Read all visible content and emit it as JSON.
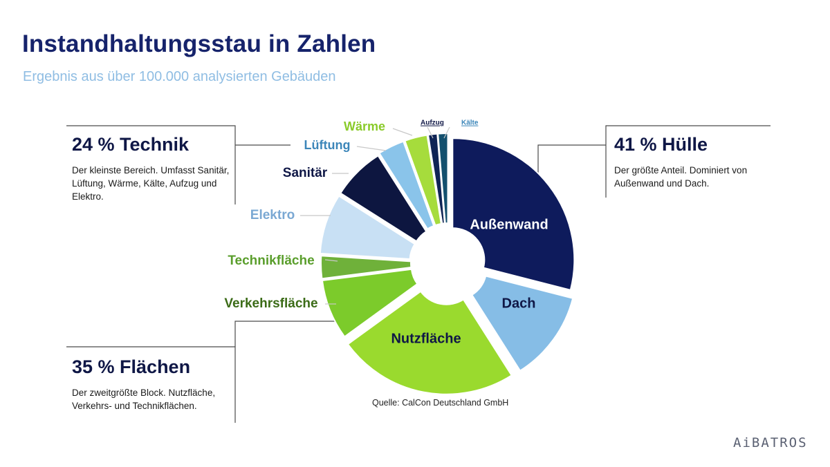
{
  "title": "Instandhaltungsstau in Zahlen",
  "subtitle": "Ergebnis aus über 100.000 analysierten Gebäuden",
  "source": "Quelle: CalCon Deutschland GmbH",
  "brand": "AiBATROS",
  "groups": {
    "technik": {
      "heading": "24 % Technik",
      "text": "Der kleinste Bereich. Umfasst Sanitär, Lüftung, Wärme, Kälte, Aufzug und Elektro."
    },
    "huelle": {
      "heading": "41 % Hülle",
      "text": "Der größte Anteil. Dominiert von Außenwand und Dach."
    },
    "flaechen": {
      "heading": "35 % Flächen",
      "text": "Der zweitgrößte Block. Nutzfläche, Verkehrs- und Technikflächen."
    }
  },
  "chart_data": {
    "type": "pie",
    "style": "donut",
    "slices": [
      {
        "label": "Außenwand",
        "value": 29,
        "color": "#0e1b5c",
        "text_color": "#ffffff",
        "group": "Hülle"
      },
      {
        "label": "Dach",
        "value": 12,
        "color": "#86bde6",
        "text_color": "#0f1746",
        "group": "Hülle"
      },
      {
        "label": "Nutzfläche",
        "value": 24,
        "color": "#9ada2e",
        "text_color": "#0f1746",
        "group": "Flächen"
      },
      {
        "label": "Verkehrsfläche",
        "value": 8,
        "color": "#7ccb2b",
        "text_color": "#3b6b17",
        "group": "Flächen"
      },
      {
        "label": "Technikfläche",
        "value": 3,
        "color": "#6fb13a",
        "text_color": "#5a9e2c",
        "group": "Flächen"
      },
      {
        "label": "Elektro",
        "value": 8,
        "color": "#c8e0f4",
        "text_color": "#7aa8d3",
        "group": "Technik"
      },
      {
        "label": "Sanitär",
        "value": 7,
        "color": "#0d1640",
        "text_color": "#0f1746",
        "group": "Technik"
      },
      {
        "label": "Lüftung",
        "value": 3.5,
        "color": "#8ac4ea",
        "text_color": "#3c86b9",
        "group": "Technik"
      },
      {
        "label": "Wärme",
        "value": 3,
        "color": "#a6dc3c",
        "text_color": "#8acb2a",
        "group": "Technik"
      },
      {
        "label": "Aufzug",
        "value": 1.2,
        "color": "#0f2455",
        "text_color": "#0f1746",
        "group": "Technik"
      },
      {
        "label": "Kälte",
        "value": 1.3,
        "color": "#14506e",
        "text_color": "#3c86b9",
        "group": "Technik"
      }
    ]
  }
}
